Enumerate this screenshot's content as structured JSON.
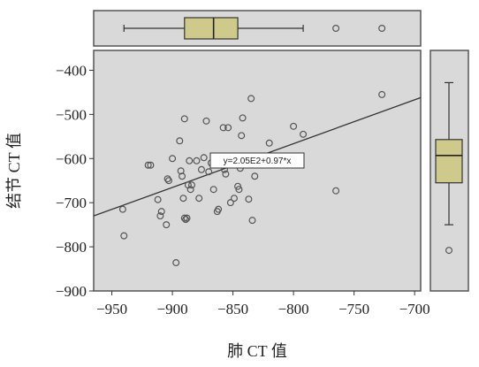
{
  "chart_data": {
    "type": "scatter",
    "xlabel": "肺 CT 值",
    "ylabel": "结节 CT 值",
    "xlim": [
      -965,
      -695
    ],
    "ylim": [
      -900,
      -355
    ],
    "xticks": [
      -950,
      -900,
      -850,
      -800,
      -750,
      -700
    ],
    "yticks": [
      -400,
      -500,
      -600,
      -700,
      -800,
      -900
    ],
    "regression_label": "y=2.05E2+0.97*x",
    "regression_line": {
      "x": [
        -965,
        -695
      ],
      "y": [
        -730,
        -462
      ]
    },
    "points": [
      {
        "x": -941,
        "y": -715
      },
      {
        "x": -940,
        "y": -775
      },
      {
        "x": -920,
        "y": -615
      },
      {
        "x": -918,
        "y": -615
      },
      {
        "x": -912,
        "y": -693
      },
      {
        "x": -910,
        "y": -730
      },
      {
        "x": -909,
        "y": -720
      },
      {
        "x": -905,
        "y": -750
      },
      {
        "x": -904,
        "y": -646
      },
      {
        "x": -903,
        "y": -650
      },
      {
        "x": -900,
        "y": -600
      },
      {
        "x": -897,
        "y": -836
      },
      {
        "x": -894,
        "y": -560
      },
      {
        "x": -893,
        "y": -628
      },
      {
        "x": -892,
        "y": -640
      },
      {
        "x": -891,
        "y": -690
      },
      {
        "x": -890,
        "y": -735
      },
      {
        "x": -889,
        "y": -738
      },
      {
        "x": -888,
        "y": -735
      },
      {
        "x": -887,
        "y": -660
      },
      {
        "x": -886,
        "y": -605
      },
      {
        "x": -885,
        "y": -670
      },
      {
        "x": -884,
        "y": -660
      },
      {
        "x": -890,
        "y": -510
      },
      {
        "x": -880,
        "y": -605
      },
      {
        "x": -878,
        "y": -690
      },
      {
        "x": -876,
        "y": -625
      },
      {
        "x": -874,
        "y": -598
      },
      {
        "x": -872,
        "y": -515
      },
      {
        "x": -870,
        "y": -630
      },
      {
        "x": -868,
        "y": -610
      },
      {
        "x": -866,
        "y": -670
      },
      {
        "x": -865,
        "y": -600
      },
      {
        "x": -863,
        "y": -720
      },
      {
        "x": -862,
        "y": -715
      },
      {
        "x": -858,
        "y": -530
      },
      {
        "x": -857,
        "y": -625
      },
      {
        "x": -856,
        "y": -635
      },
      {
        "x": -854,
        "y": -530
      },
      {
        "x": -852,
        "y": -700
      },
      {
        "x": -849,
        "y": -690
      },
      {
        "x": -846,
        "y": -663
      },
      {
        "x": -845,
        "y": -670
      },
      {
        "x": -844,
        "y": -622
      },
      {
        "x": -843,
        "y": -548
      },
      {
        "x": -842,
        "y": -508
      },
      {
        "x": -841,
        "y": -605
      },
      {
        "x": -837,
        "y": -692
      },
      {
        "x": -835,
        "y": -464
      },
      {
        "x": -834,
        "y": -740
      },
      {
        "x": -832,
        "y": -640
      },
      {
        "x": -820,
        "y": -565
      },
      {
        "x": -800,
        "y": -527
      },
      {
        "x": -792,
        "y": -545
      },
      {
        "x": -765,
        "y": -673
      },
      {
        "x": -727,
        "y": -455
      }
    ],
    "boxplot_x": {
      "whisker_low": -940,
      "q1": -890,
      "median": -866,
      "q3": -846,
      "whisker_high": -792,
      "outliers": [
        -765,
        -727
      ]
    },
    "boxplot_y": {
      "whisker_low": -750,
      "q1": -655,
      "median": -593,
      "q3": -557,
      "whisker_high": -428,
      "outliers": [
        -808
      ]
    },
    "grid": false,
    "legend": "none",
    "colors": {
      "box_fill": "#cfca8c",
      "background": "#d9d9d9",
      "marker": "#555555",
      "line": "#333333"
    }
  }
}
